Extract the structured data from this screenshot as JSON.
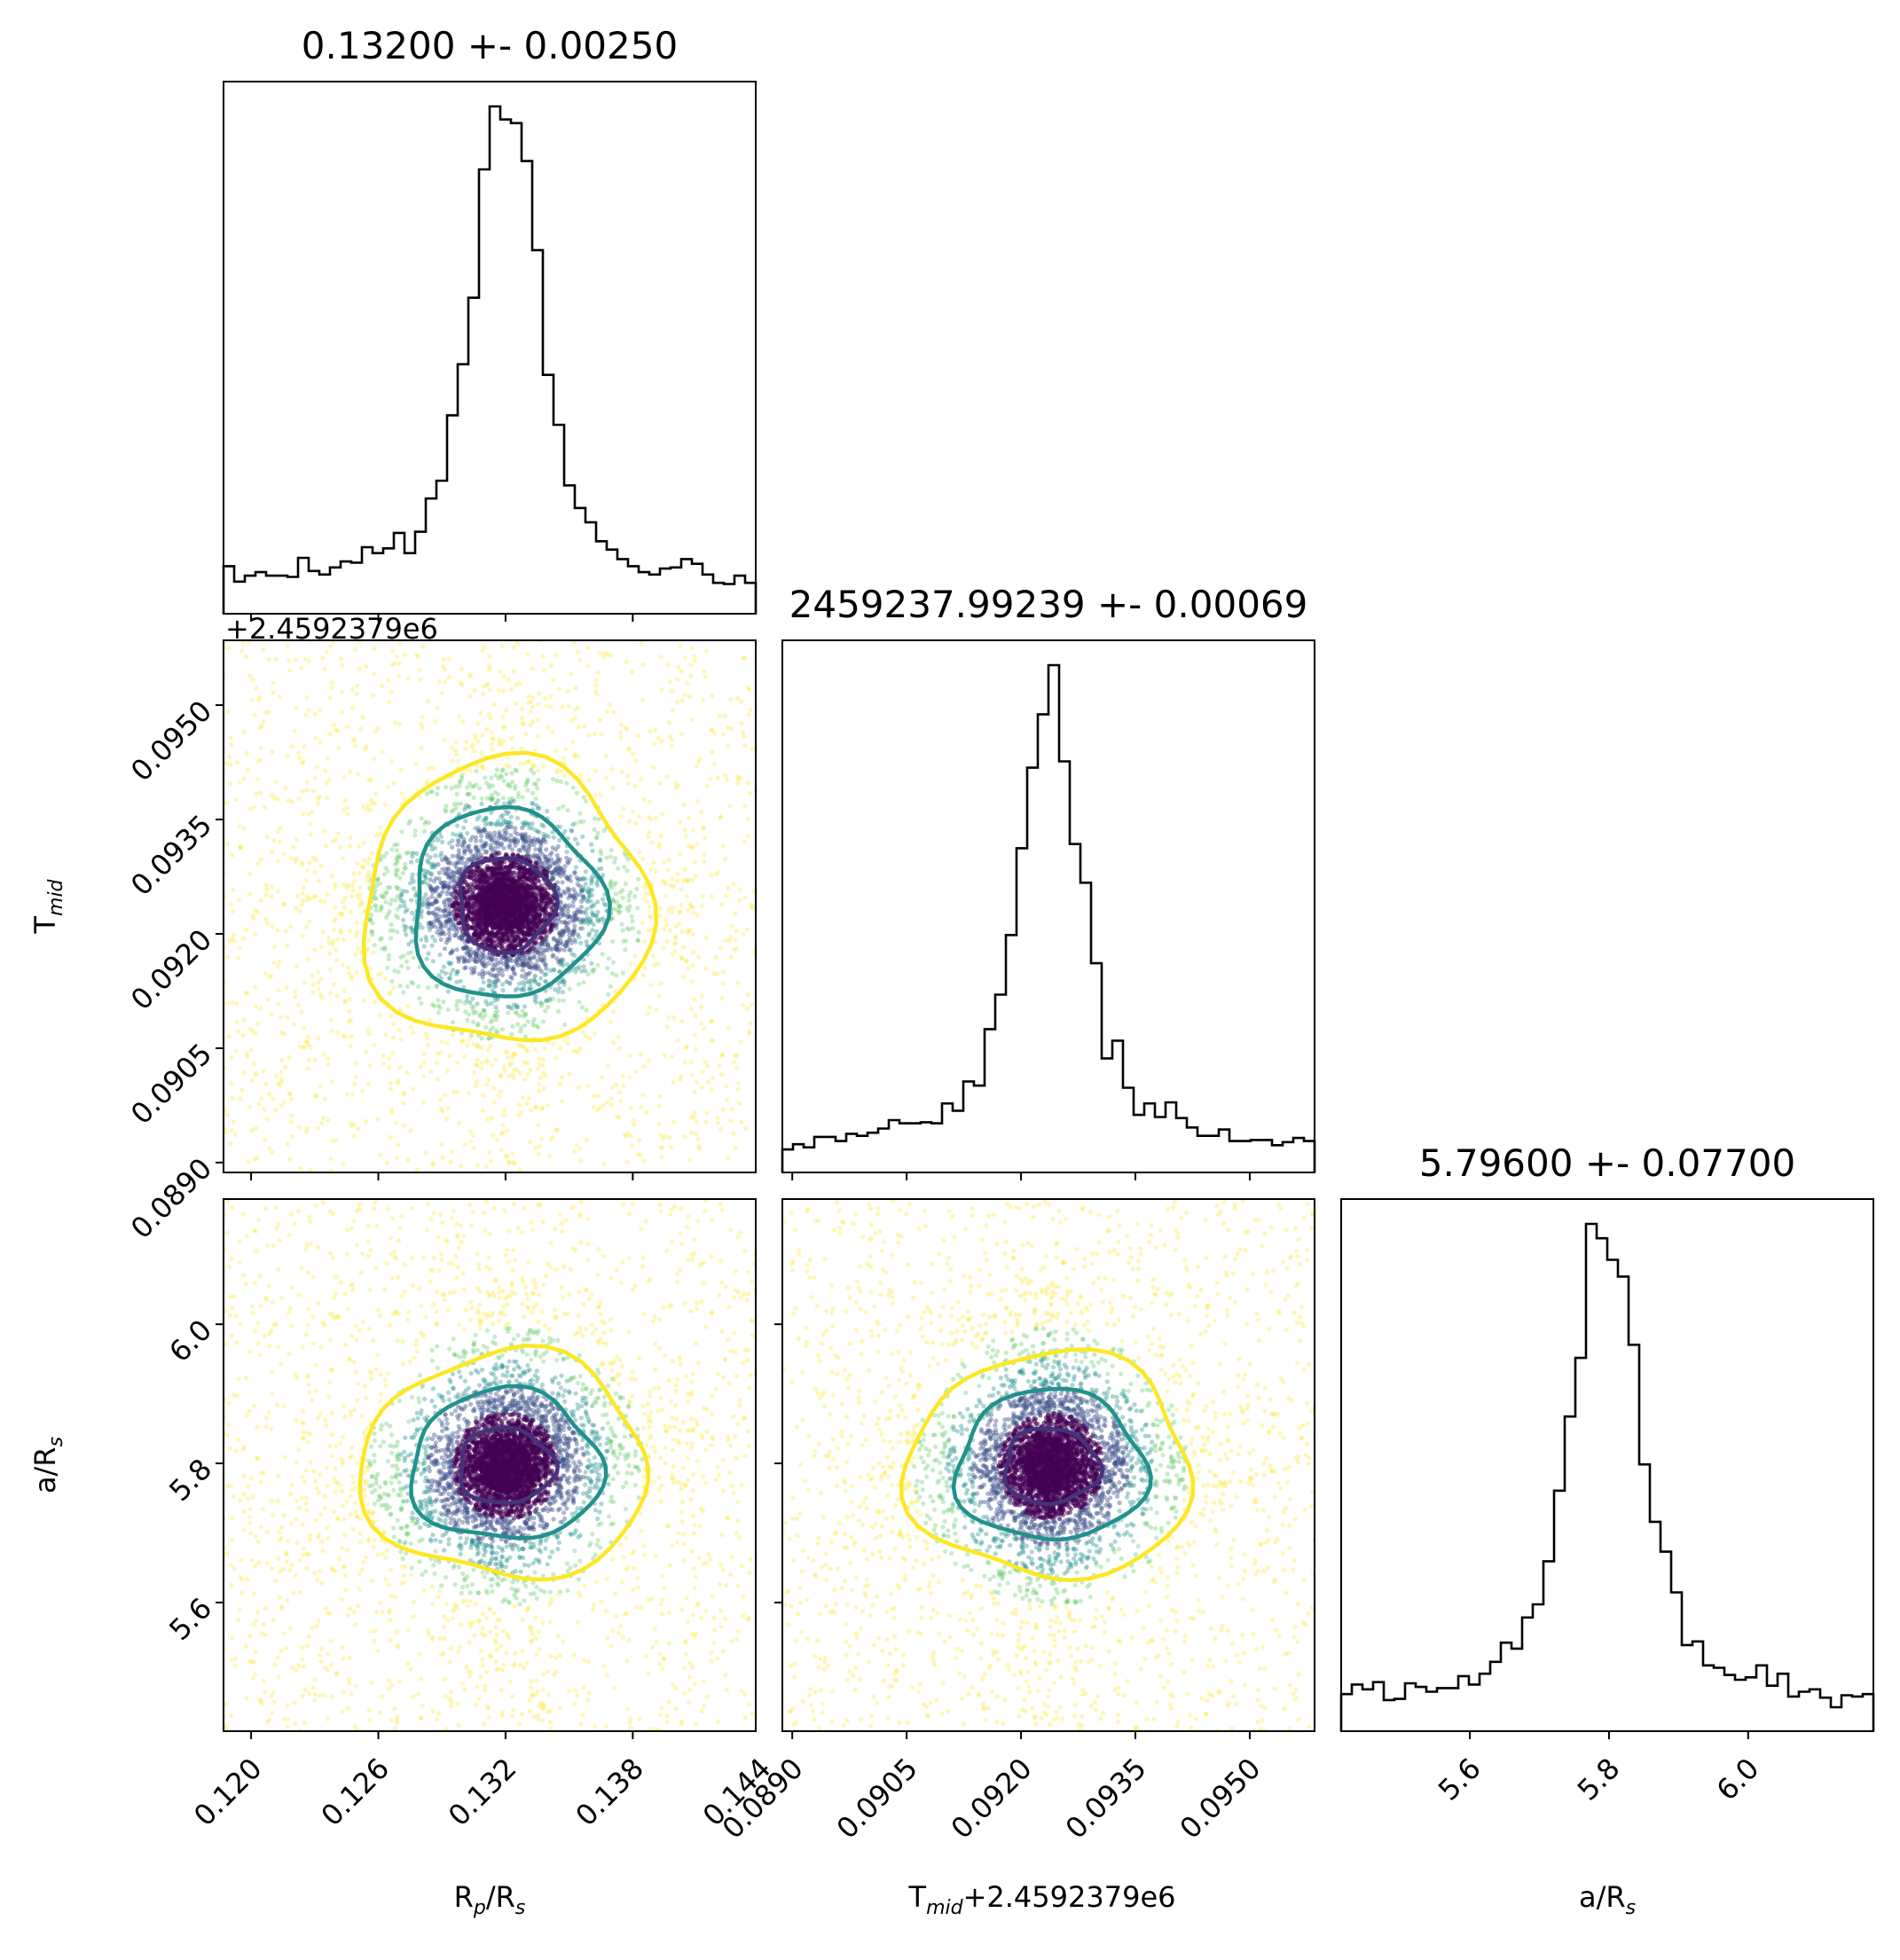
{
  "chart_data": {
    "type": "corner",
    "parameters": [
      {
        "name": "R_p/R_s",
        "label_main": "R",
        "label_sub": "p",
        "label_tail": "/R",
        "label_tail_sub": "s",
        "title": "0.13200 +- 0.00250",
        "median": 0.132,
        "sigma": 0.0025,
        "range": [
          0.1187,
          0.1438
        ],
        "ticks": [
          "0.120",
          "0.126",
          "0.132",
          "0.138",
          "0.144"
        ],
        "offset": ""
      },
      {
        "name": "T_mid",
        "label_main": "T",
        "label_sub": "mid",
        "label_tail": "",
        "label_tail_sub": "",
        "title": "2459237.99239 +- 0.00069",
        "median": 0.09239,
        "sigma": 0.00069,
        "range": [
          0.08887,
          0.09585
        ],
        "ticks": [
          "0.0890",
          "0.0905",
          "0.0920",
          "0.0935",
          "0.0950"
        ],
        "offset": "+2.4592379e6"
      },
      {
        "name": "a/R_s",
        "label_main": "a/R",
        "label_sub": "s",
        "label_tail": "",
        "label_tail_sub": "",
        "title": "5.79600 +- 0.07700",
        "median": 5.796,
        "sigma": 0.077,
        "range": [
          5.415,
          6.18
        ],
        "ticks": [
          "5.6",
          "5.8",
          "6.0"
        ],
        "offset": ""
      }
    ],
    "histograms": [
      {
        "param": 0,
        "bins": 50,
        "peak_normalized": 1.0
      },
      {
        "param": 1,
        "bins": 50,
        "peak_normalized": 1.0
      },
      {
        "param": 2,
        "bins": 50,
        "peak_normalized": 1.0
      }
    ],
    "contour_levels": [
      "1-sigma",
      "2-sigma",
      "3-sigma"
    ],
    "colors": {
      "hist": "#000000",
      "contour_1": "#44337a",
      "contour_2": "#21918c",
      "contour_3": "#fde725",
      "core": "#440154"
    },
    "grid": false,
    "legend": "none"
  }
}
